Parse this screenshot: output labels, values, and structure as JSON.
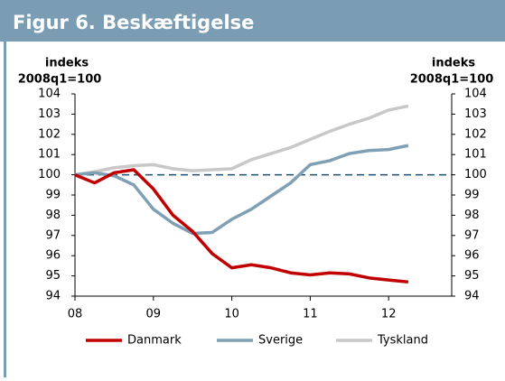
{
  "chart_data": {
    "type": "line",
    "title": "Figur 6. Beskæftigelse",
    "ylabel": [
      "indeks",
      "2008q1=100"
    ],
    "y2label": [
      "indeks",
      "2008q1=100"
    ],
    "categories": [
      "08",
      null,
      null,
      null,
      "09",
      null,
      null,
      null,
      "10",
      null,
      null,
      null,
      "11",
      null,
      null,
      null,
      "12",
      null
    ],
    "series": [
      {
        "name": "Danmark",
        "color": "#c00000",
        "values": [
          100,
          99.6,
          100.1,
          100.25,
          99.3,
          98,
          97.2,
          96.1,
          95.4,
          95.55,
          95.4,
          95.15,
          95.05,
          95.15,
          95.1,
          94.9,
          94.8,
          94.7
        ]
      },
      {
        "name": "Sverige",
        "color": "#7f9fb4",
        "values": [
          100,
          100.1,
          99.95,
          99.5,
          98.3,
          97.6,
          97.1,
          97.15,
          97.8,
          98.3,
          98.95,
          99.6,
          100.5,
          100.7,
          101.05,
          101.2,
          101.25,
          101.45
        ]
      },
      {
        "name": "Tyskland",
        "color": "#c8c8c8",
        "values": [
          100,
          100.15,
          100.35,
          100.45,
          100.5,
          100.3,
          100.2,
          100.25,
          100.3,
          100.75,
          101.05,
          101.35,
          101.75,
          102.15,
          102.5,
          102.8,
          103.2,
          103.4
        ]
      }
    ],
    "reference_line": 100,
    "ylim": [
      94,
      104
    ],
    "yticks": [
      94,
      95,
      96,
      97,
      98,
      99,
      100,
      101,
      102,
      103,
      104
    ],
    "y2lim": [
      94,
      104
    ],
    "y2ticks": [
      94,
      95,
      96,
      97,
      98,
      99,
      100,
      101,
      102,
      103,
      104
    ],
    "legend": "bottom"
  }
}
